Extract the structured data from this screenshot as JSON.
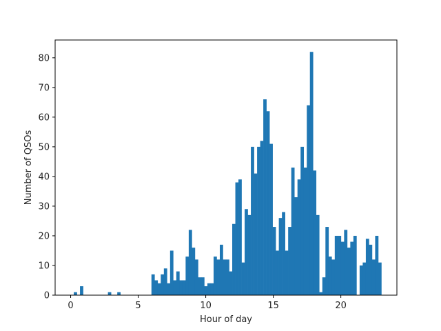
{
  "chart_data": {
    "type": "bar",
    "title": "",
    "xlabel": "Hour of day",
    "ylabel": "Number of QSOs",
    "xlim": [
      -1.15,
      24.15
    ],
    "ylim": [
      0,
      86
    ],
    "bin_width": 0.23,
    "x_ticks": [
      0,
      5,
      10,
      15,
      20
    ],
    "y_ticks": [
      0,
      10,
      20,
      30,
      40,
      50,
      60,
      70,
      80
    ],
    "grid": false,
    "color": "#1f77b4",
    "bins": [
      {
        "x": 0.0,
        "value": 0
      },
      {
        "x": 0.23,
        "value": 1
      },
      {
        "x": 0.46,
        "value": 0
      },
      {
        "x": 0.69,
        "value": 3
      },
      {
        "x": 0.92,
        "value": 0
      },
      {
        "x": 1.15,
        "value": 0
      },
      {
        "x": 1.38,
        "value": 0
      },
      {
        "x": 1.61,
        "value": 0
      },
      {
        "x": 1.84,
        "value": 0
      },
      {
        "x": 2.07,
        "value": 0
      },
      {
        "x": 2.3,
        "value": 0
      },
      {
        "x": 2.53,
        "value": 0
      },
      {
        "x": 2.76,
        "value": 1
      },
      {
        "x": 2.99,
        "value": 0
      },
      {
        "x": 3.22,
        "value": 0
      },
      {
        "x": 3.45,
        "value": 1
      },
      {
        "x": 3.68,
        "value": 0
      },
      {
        "x": 3.91,
        "value": 0
      },
      {
        "x": 4.14,
        "value": 0
      },
      {
        "x": 4.37,
        "value": 0
      },
      {
        "x": 4.6,
        "value": 0
      },
      {
        "x": 4.83,
        "value": 0
      },
      {
        "x": 5.06,
        "value": 0
      },
      {
        "x": 5.29,
        "value": 0
      },
      {
        "x": 5.52,
        "value": 0
      },
      {
        "x": 5.75,
        "value": 0
      },
      {
        "x": 5.98,
        "value": 7
      },
      {
        "x": 6.21,
        "value": 5
      },
      {
        "x": 6.44,
        "value": 4
      },
      {
        "x": 6.67,
        "value": 7
      },
      {
        "x": 6.9,
        "value": 9
      },
      {
        "x": 7.13,
        "value": 4
      },
      {
        "x": 7.36,
        "value": 15
      },
      {
        "x": 7.59,
        "value": 5
      },
      {
        "x": 7.82,
        "value": 8
      },
      {
        "x": 8.05,
        "value": 5
      },
      {
        "x": 8.28,
        "value": 5
      },
      {
        "x": 8.51,
        "value": 13
      },
      {
        "x": 8.74,
        "value": 22
      },
      {
        "x": 8.97,
        "value": 16
      },
      {
        "x": 9.2,
        "value": 12
      },
      {
        "x": 9.43,
        "value": 6
      },
      {
        "x": 9.66,
        "value": 6
      },
      {
        "x": 9.89,
        "value": 3
      },
      {
        "x": 10.12,
        "value": 4
      },
      {
        "x": 10.35,
        "value": 4
      },
      {
        "x": 10.58,
        "value": 13
      },
      {
        "x": 10.81,
        "value": 12
      },
      {
        "x": 11.04,
        "value": 17
      },
      {
        "x": 11.27,
        "value": 12
      },
      {
        "x": 11.5,
        "value": 12
      },
      {
        "x": 11.73,
        "value": 8
      },
      {
        "x": 11.96,
        "value": 24
      },
      {
        "x": 12.19,
        "value": 38
      },
      {
        "x": 12.42,
        "value": 39
      },
      {
        "x": 12.65,
        "value": 11
      },
      {
        "x": 12.88,
        "value": 29
      },
      {
        "x": 13.11,
        "value": 27
      },
      {
        "x": 13.34,
        "value": 50
      },
      {
        "x": 13.57,
        "value": 41
      },
      {
        "x": 13.8,
        "value": 50
      },
      {
        "x": 14.03,
        "value": 52
      },
      {
        "x": 14.26,
        "value": 66
      },
      {
        "x": 14.49,
        "value": 62
      },
      {
        "x": 14.72,
        "value": 51
      },
      {
        "x": 14.95,
        "value": 23
      },
      {
        "x": 15.18,
        "value": 15
      },
      {
        "x": 15.41,
        "value": 26
      },
      {
        "x": 15.64,
        "value": 28
      },
      {
        "x": 15.87,
        "value": 15
      },
      {
        "x": 16.1,
        "value": 23
      },
      {
        "x": 16.33,
        "value": 43
      },
      {
        "x": 16.56,
        "value": 33
      },
      {
        "x": 16.79,
        "value": 39
      },
      {
        "x": 17.02,
        "value": 50
      },
      {
        "x": 17.25,
        "value": 43
      },
      {
        "x": 17.48,
        "value": 64
      },
      {
        "x": 17.71,
        "value": 82
      },
      {
        "x": 17.94,
        "value": 42
      },
      {
        "x": 18.17,
        "value": 27
      },
      {
        "x": 18.4,
        "value": 1
      },
      {
        "x": 18.63,
        "value": 6
      },
      {
        "x": 18.86,
        "value": 23
      },
      {
        "x": 19.09,
        "value": 13
      },
      {
        "x": 19.32,
        "value": 12
      },
      {
        "x": 19.55,
        "value": 20
      },
      {
        "x": 19.78,
        "value": 20
      },
      {
        "x": 20.01,
        "value": 18
      },
      {
        "x": 20.24,
        "value": 22
      },
      {
        "x": 20.47,
        "value": 16
      },
      {
        "x": 20.7,
        "value": 18
      },
      {
        "x": 20.93,
        "value": 20
      },
      {
        "x": 21.16,
        "value": 0
      },
      {
        "x": 21.39,
        "value": 10
      },
      {
        "x": 21.62,
        "value": 11
      },
      {
        "x": 21.85,
        "value": 19
      },
      {
        "x": 22.08,
        "value": 17
      },
      {
        "x": 22.31,
        "value": 12
      },
      {
        "x": 22.54,
        "value": 20
      },
      {
        "x": 22.77,
        "value": 11
      }
    ]
  }
}
